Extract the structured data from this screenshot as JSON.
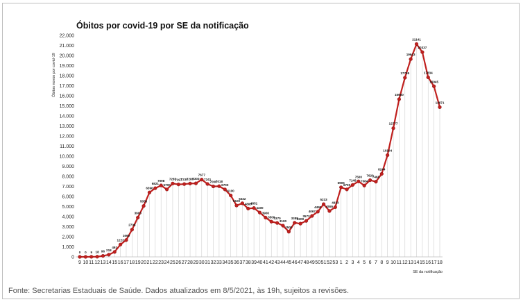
{
  "chart_data": {
    "type": "line",
    "title": "Óbitos por covid-19 por SE da notificação",
    "xlabel": "SE da notificação",
    "ylabel": "Óbitos novos por covid-19",
    "ylim": [
      0,
      22000
    ],
    "yticks": [
      0,
      1000,
      2000,
      3000,
      4000,
      5000,
      6000,
      7000,
      8000,
      9000,
      10000,
      11000,
      12000,
      13000,
      14000,
      15000,
      16000,
      17000,
      18000,
      19000,
      20000,
      21000,
      22000
    ],
    "ytick_labels": [
      "0",
      "1.000",
      "2.000",
      "3.000",
      "4.000",
      "5.000",
      "6.000",
      "7.000",
      "8.000",
      "9.000",
      "10.000",
      "11.000",
      "12.000",
      "13.000",
      "14.000",
      "15.000",
      "16.000",
      "17.000",
      "18.000",
      "19.000",
      "20.000",
      "21.000",
      "22.000"
    ],
    "grid": "vertical",
    "line_color": "#c0201e",
    "marker_color": "#c0201e",
    "categories": [
      "9",
      "10",
      "11",
      "12",
      "13",
      "14",
      "15",
      "16",
      "17",
      "18",
      "19",
      "20",
      "21",
      "22",
      "23",
      "24",
      "25",
      "26",
      "27",
      "28",
      "29",
      "30",
      "31",
      "32",
      "33",
      "34",
      "35",
      "36",
      "37",
      "38",
      "39",
      "40",
      "41",
      "42",
      "43",
      "44",
      "45",
      "46",
      "47",
      "48",
      "49",
      "50",
      "51",
      "52",
      "53",
      "1",
      "2",
      "3",
      "4",
      "5",
      "6",
      "7",
      "8",
      "9",
      "10",
      "11",
      "12",
      "13",
      "14",
      "15",
      "16",
      "17",
      "18"
    ],
    "series": [
      {
        "values": [
          0,
          0,
          9,
          18,
          96,
          218,
          492,
          1223,
          1669,
          2708,
          3903,
          5056,
          6396,
          6821,
          7098,
          6700,
          7285,
          7197,
          7230,
          7286,
          7303,
          7677,
          7241,
          7000,
          7018,
          6700,
          6100,
          5100,
          5322,
          4800,
          4851,
          4400,
          3900,
          3500,
          3370,
          3100,
          2500,
          3388,
          3300,
          3573,
          4067,
          4490,
          5233,
          4555,
          4933,
          6906,
          6700,
          7148,
          7500,
          7084,
          7620,
          7468,
          8244,
          10104,
          12777,
          15660,
          17795,
          19643,
          21141,
          20337,
          17834,
          16945,
          14871
        ],
        "labels": [
          "0",
          "0",
          "9",
          "18",
          "96",
          "218",
          "492",
          "1223",
          "1669",
          "2708",
          "3903",
          "5056",
          "6396",
          "6821",
          "7098",
          "6700",
          "7285",
          "7197",
          "7230",
          "7286",
          "7303",
          "7677",
          "7241",
          "7000",
          "7018",
          "6700",
          "6100",
          "5100",
          "5322",
          "4800",
          "4851",
          "4400",
          "3900",
          "3500",
          "3370",
          "3100",
          "2500",
          "3388",
          "3300",
          "3573",
          "4067",
          "4490",
          "5233",
          "4555",
          "4933",
          "6906",
          "6700",
          "7148",
          "7500",
          "7084",
          "7620",
          "7468",
          "8244",
          "10104",
          "12777",
          "15660",
          "17795",
          "19643",
          "21141",
          "20337",
          "17834",
          "16945",
          "14871"
        ]
      }
    ]
  },
  "footer": "Fonte: Secretarias Estaduais de Saúde. Dados atualizados em 8/5/2021, às 19h, sujeitos a revisões."
}
